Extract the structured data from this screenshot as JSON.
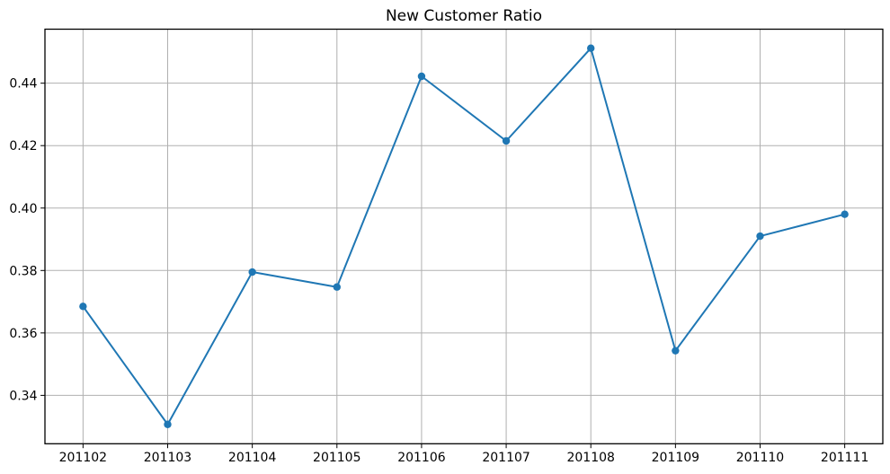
{
  "chart_data": {
    "type": "line",
    "title": "New Customer Ratio",
    "categories": [
      "201102",
      "201103",
      "201104",
      "201105",
      "201106",
      "201107",
      "201108",
      "201109",
      "201110",
      "201111"
    ],
    "values": [
      0.3685,
      0.3307,
      0.3795,
      0.3747,
      0.4422,
      0.4215,
      0.4512,
      0.3543,
      0.391,
      0.398
    ],
    "series_name": "New Customer Ratio",
    "xlabel": "",
    "ylabel": "",
    "yticks": [
      0.34,
      0.36,
      0.38,
      0.4,
      0.42,
      0.44
    ],
    "ytick_labels": [
      "0.34",
      "0.36",
      "0.38",
      "0.40",
      "0.42",
      "0.44"
    ],
    "ylim": [
      0.3245,
      0.4573
    ],
    "grid": true,
    "legend": false,
    "line_color": "#1f77b4",
    "marker": "circle",
    "grid_color": "#b0b0b0",
    "spine_color": "#000000",
    "text_color": "#000000",
    "background": "#ffffff"
  }
}
